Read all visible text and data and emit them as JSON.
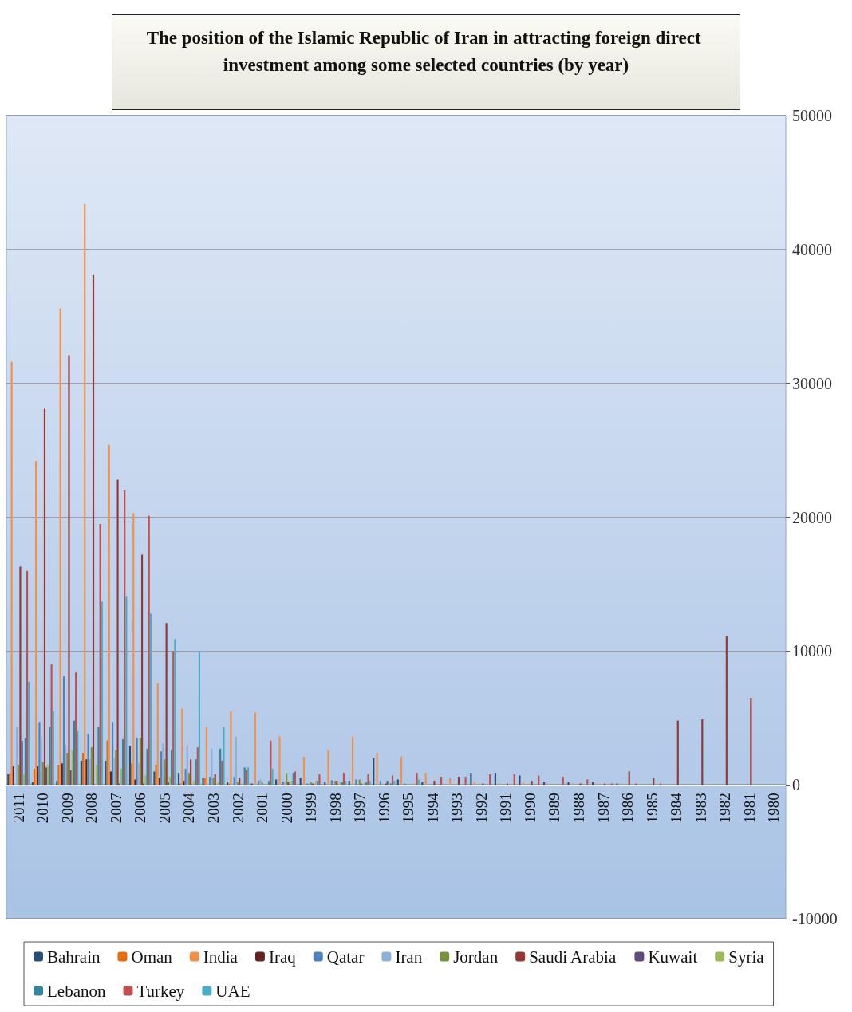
{
  "chart_data": {
    "type": "bar",
    "title": "The position of the Islamic Republic of Iran in attracting foreign direct investment among some selected countries (by year)",
    "categories": [
      "2011",
      "2010",
      "2009",
      "2008",
      "2007",
      "2006",
      "2005",
      "2004",
      "2003",
      "2002",
      "2001",
      "2000",
      "1999",
      "1998",
      "1997",
      "1996",
      "1995",
      "1994",
      "1993",
      "1992",
      "1991",
      "1990",
      "1989",
      "1988",
      "1987",
      "1986",
      "1985",
      "1984",
      "1983",
      "1982",
      "1981",
      "1980"
    ],
    "series": [
      {
        "name": "Bahrain",
        "color": "#2c4d75",
        "values": [
          800,
          200,
          300,
          1800,
          1800,
          2900,
          1000,
          900,
          500,
          200,
          100,
          400,
          500,
          200,
          300,
          2000,
          400,
          200,
          0,
          900,
          900,
          700,
          200,
          200,
          200,
          100,
          0,
          0,
          0,
          0,
          0,
          0
        ]
      },
      {
        "name": "Oman",
        "color": "#e46c0a",
        "values": [
          900,
          1200,
          1500,
          2400,
          3300,
          1600,
          1500,
          100,
          500,
          100,
          0,
          0,
          0,
          0,
          0,
          0,
          0,
          0,
          0,
          0,
          0,
          0,
          0,
          0,
          0,
          0,
          0,
          0,
          0,
          0,
          0,
          0
        ]
      },
      {
        "name": "India",
        "color": "#f0904a",
        "values": [
          31600,
          24200,
          35600,
          43400,
          25400,
          20300,
          7600,
          5700,
          4300,
          5500,
          5400,
          3600,
          2100,
          2600,
          3600,
          2400,
          2100,
          900,
          500,
          200,
          100,
          200,
          100,
          100,
          100,
          100,
          0,
          0,
          0,
          0,
          0,
          0
        ]
      },
      {
        "name": "Iraq",
        "color": "#632523",
        "values": [
          1400,
          1400,
          1600,
          1900,
          1000,
          400,
          500,
          300,
          0,
          0,
          0,
          0,
          0,
          0,
          0,
          0,
          0,
          0,
          0,
          0,
          0,
          0,
          0,
          0,
          0,
          0,
          0,
          0,
          0,
          0,
          0,
          0
        ]
      },
      {
        "name": "Qatar",
        "color": "#4f81bd",
        "values": [
          0,
          4700,
          8100,
          3800,
          4700,
          3500,
          2500,
          1200,
          600,
          600,
          300,
          250,
          100,
          350,
          400,
          300,
          100,
          0,
          0,
          0,
          0,
          0,
          0,
          0,
          0,
          0,
          0,
          0,
          0,
          0,
          0,
          0
        ]
      },
      {
        "name": "Iran",
        "color": "#8fb0dc",
        "values": [
          4300,
          3600,
          3000,
          1900,
          2000,
          1600,
          3100,
          2900,
          2700,
          3600,
          400,
          200,
          0,
          0,
          0,
          0,
          0,
          0,
          0,
          0,
          0,
          0,
          0,
          0,
          0,
          0,
          0,
          0,
          0,
          0,
          0,
          0
        ]
      },
      {
        "name": "Jordan",
        "color": "#77933c",
        "values": [
          1500,
          1700,
          2400,
          2800,
          2600,
          3500,
          1900,
          900,
          500,
          200,
          200,
          900,
          200,
          300,
          400,
          0,
          0,
          0,
          0,
          0,
          0,
          0,
          0,
          0,
          0,
          0,
          0,
          0,
          0,
          0,
          0,
          0
        ]
      },
      {
        "name": "Saudi Arabia",
        "color": "#953735",
        "values": [
          16300,
          28100,
          32100,
          38100,
          22800,
          17200,
          12100,
          1900,
          800,
          500,
          0,
          200,
          100,
          300,
          100,
          100,
          0,
          300,
          600,
          100,
          100,
          300,
          0,
          100,
          100,
          1000,
          500,
          4800,
          4900,
          11100,
          6500,
          0
        ]
      },
      {
        "name": "Kuwait",
        "color": "#604a7b",
        "values": [
          3300,
          1300,
          1100,
          0,
          100,
          100,
          200,
          0,
          0,
          0,
          0,
          0,
          0,
          0,
          0,
          300,
          0,
          0,
          0,
          0,
          0,
          0,
          0,
          0,
          0,
          0,
          0,
          0,
          0,
          0,
          0,
          0
        ]
      },
      {
        "name": "Syria",
        "color": "#9bbb59",
        "values": [
          800,
          1500,
          2600,
          1500,
          1200,
          700,
          600,
          300,
          200,
          100,
          100,
          300,
          300,
          200,
          100,
          100,
          100,
          0,
          0,
          0,
          0,
          0,
          0,
          0,
          0,
          0,
          0,
          0,
          0,
          0,
          0,
          0
        ]
      },
      {
        "name": "Lebanon",
        "color": "#31859c",
        "values": [
          3500,
          4300,
          4800,
          4300,
          3400,
          2700,
          2600,
          1900,
          2700,
          1300,
          300,
          900,
          300,
          200,
          200,
          100,
          0,
          0,
          0,
          0,
          0,
          0,
          0,
          0,
          0,
          0,
          0,
          0,
          0,
          0,
          0,
          0
        ]
      },
      {
        "name": "Turkey",
        "color": "#c0504d",
        "values": [
          16000,
          9000,
          8400,
          19500,
          22000,
          20100,
          10000,
          2800,
          1800,
          1100,
          3300,
          1000,
          800,
          900,
          800,
          700,
          900,
          600,
          600,
          800,
          800,
          700,
          600,
          400,
          100,
          100,
          100,
          0,
          0,
          0,
          0,
          0
        ]
      },
      {
        "name": "UAE",
        "color": "#4bacc6",
        "values": [
          7700,
          5500,
          4000,
          13700,
          14100,
          12800,
          10900,
          10000,
          4300,
          1300,
          1200,
          0,
          0,
          300,
          300,
          300,
          400,
          0,
          0,
          0,
          0,
          0,
          0,
          0,
          0,
          0,
          0,
          0,
          0,
          0,
          0,
          0
        ]
      }
    ],
    "ylim": [
      -10000,
      50000
    ],
    "yticks": [
      -10000,
      0,
      10000,
      20000,
      30000,
      40000,
      50000
    ],
    "grid": "y",
    "legend": "bottom"
  }
}
